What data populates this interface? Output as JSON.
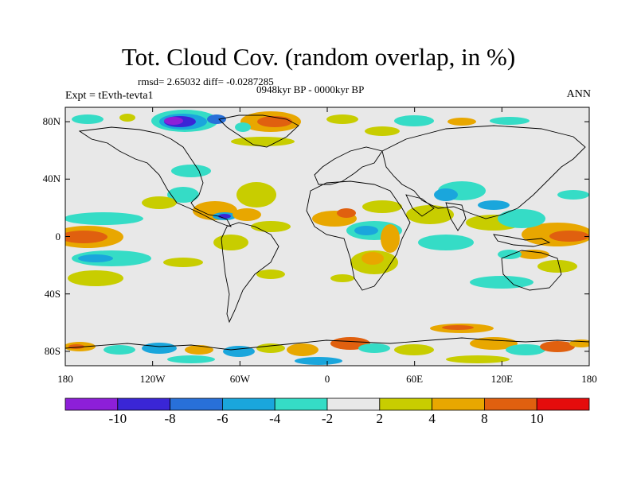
{
  "title": "Tot. Cloud Cov. (random overlap, in %)",
  "stats": "rmsd= 2.65032 diff= -0.0287285",
  "period": "0948kyr BP - 0000kyr BP",
  "experiment": "Expt = tEvth-tevta1",
  "season": "ANN",
  "lat_labels": [
    "80N",
    "40N",
    "0",
    "40S",
    "80S"
  ],
  "lat_values": [
    80,
    40,
    0,
    -40,
    -80
  ],
  "lon_labels": [
    "180",
    "120W",
    "60W",
    "0",
    "60E",
    "120E",
    "180"
  ],
  "lon_values": [
    -180,
    -120,
    -60,
    0,
    60,
    120,
    180
  ],
  "colorbar": {
    "levels": [
      -10,
      -8,
      -6,
      -4,
      -2,
      2,
      4,
      8,
      10
    ],
    "labels": [
      "-10",
      "-8",
      "-6",
      "-4",
      "-2",
      "2",
      "4",
      "8",
      "10"
    ],
    "colors": [
      "#8d1fd8",
      "#3a26d6",
      "#2870d9",
      "#1aa6dc",
      "#35dcc6",
      "#e8e8e8",
      "#c8cd00",
      "#e8a700",
      "#e0600f",
      "#e50c0c"
    ]
  },
  "map": {
    "background": "#e8e8e8",
    "extent": {
      "lon": [
        -180,
        180
      ],
      "lat": [
        -90,
        90
      ]
    }
  }
}
